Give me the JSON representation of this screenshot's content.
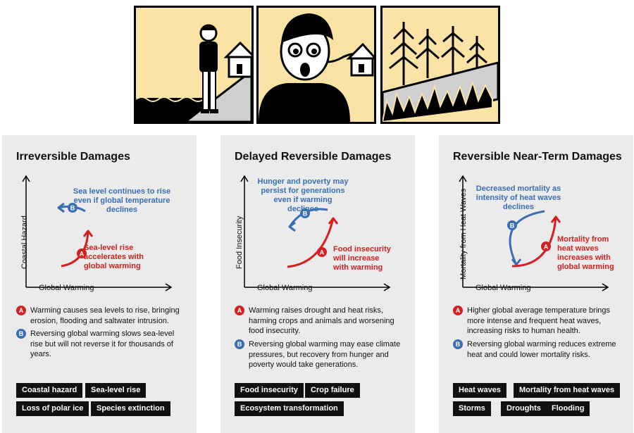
{
  "panels": [
    {
      "title": "Irreversible Damages",
      "y_axis": "Coastal Hazard",
      "x_axis": "Global Warming",
      "blue_annotation": "Sea level continues to rise even if global temperature declines",
      "red_annotation": "Sea-level rise accelerates with global warming",
      "note_a": "Warming causes sea levels to rise, bringing erosion, flooding and saltwater intrusion.",
      "note_b": "Reversing global warming slows sea-level rise but will not reverse it for thousands of years.",
      "tags": [
        "Coastal hazard",
        "Sea-level rise",
        "Loss of polar ice",
        "Species extinction"
      ]
    },
    {
      "title": "Delayed Reversible Damages",
      "y_axis": "Food Insecurity",
      "x_axis": "Global Warming",
      "blue_annotation": "Hunger and poverty may persist for generations even if warming declines",
      "red_annotation": "Food insecurity will increase with warming",
      "note_a": "Warming raises drought and heat risks, harming crops and animals and worsening food insecurity.",
      "note_b": "Reversing global warming may ease climate pressures, but recovery from hunger and poverty would take generations.",
      "tags": [
        "Food insecurity",
        "Crop failure",
        "Ecosystem transformation"
      ]
    },
    {
      "title": "Reversible Near-Term Damages",
      "y_axis": "Mortality from Heat Waves",
      "x_axis": "Global Warming",
      "blue_annotation": "Decreased mortality as intensity of heat waves declines",
      "red_annotation": "Mortality from heat waves increases with global warming",
      "note_a": "Higher global average temperature brings more intense and frequent heat waves, increasing risks to human health.",
      "note_b": "Reversing global warming reduces extreme heat and could lower mortality risks.",
      "tags": [
        "Heat waves",
        "Mortality from heat waves",
        "Storms",
        "Droughts",
        "Flooding"
      ]
    }
  ],
  "badges": {
    "a": "A",
    "b": "B"
  },
  "colors": {
    "red": "#d42020",
    "blue": "#3a6fb5",
    "panel_bg": "#ebebeb",
    "illustration_bg": "#fbe3a6"
  }
}
